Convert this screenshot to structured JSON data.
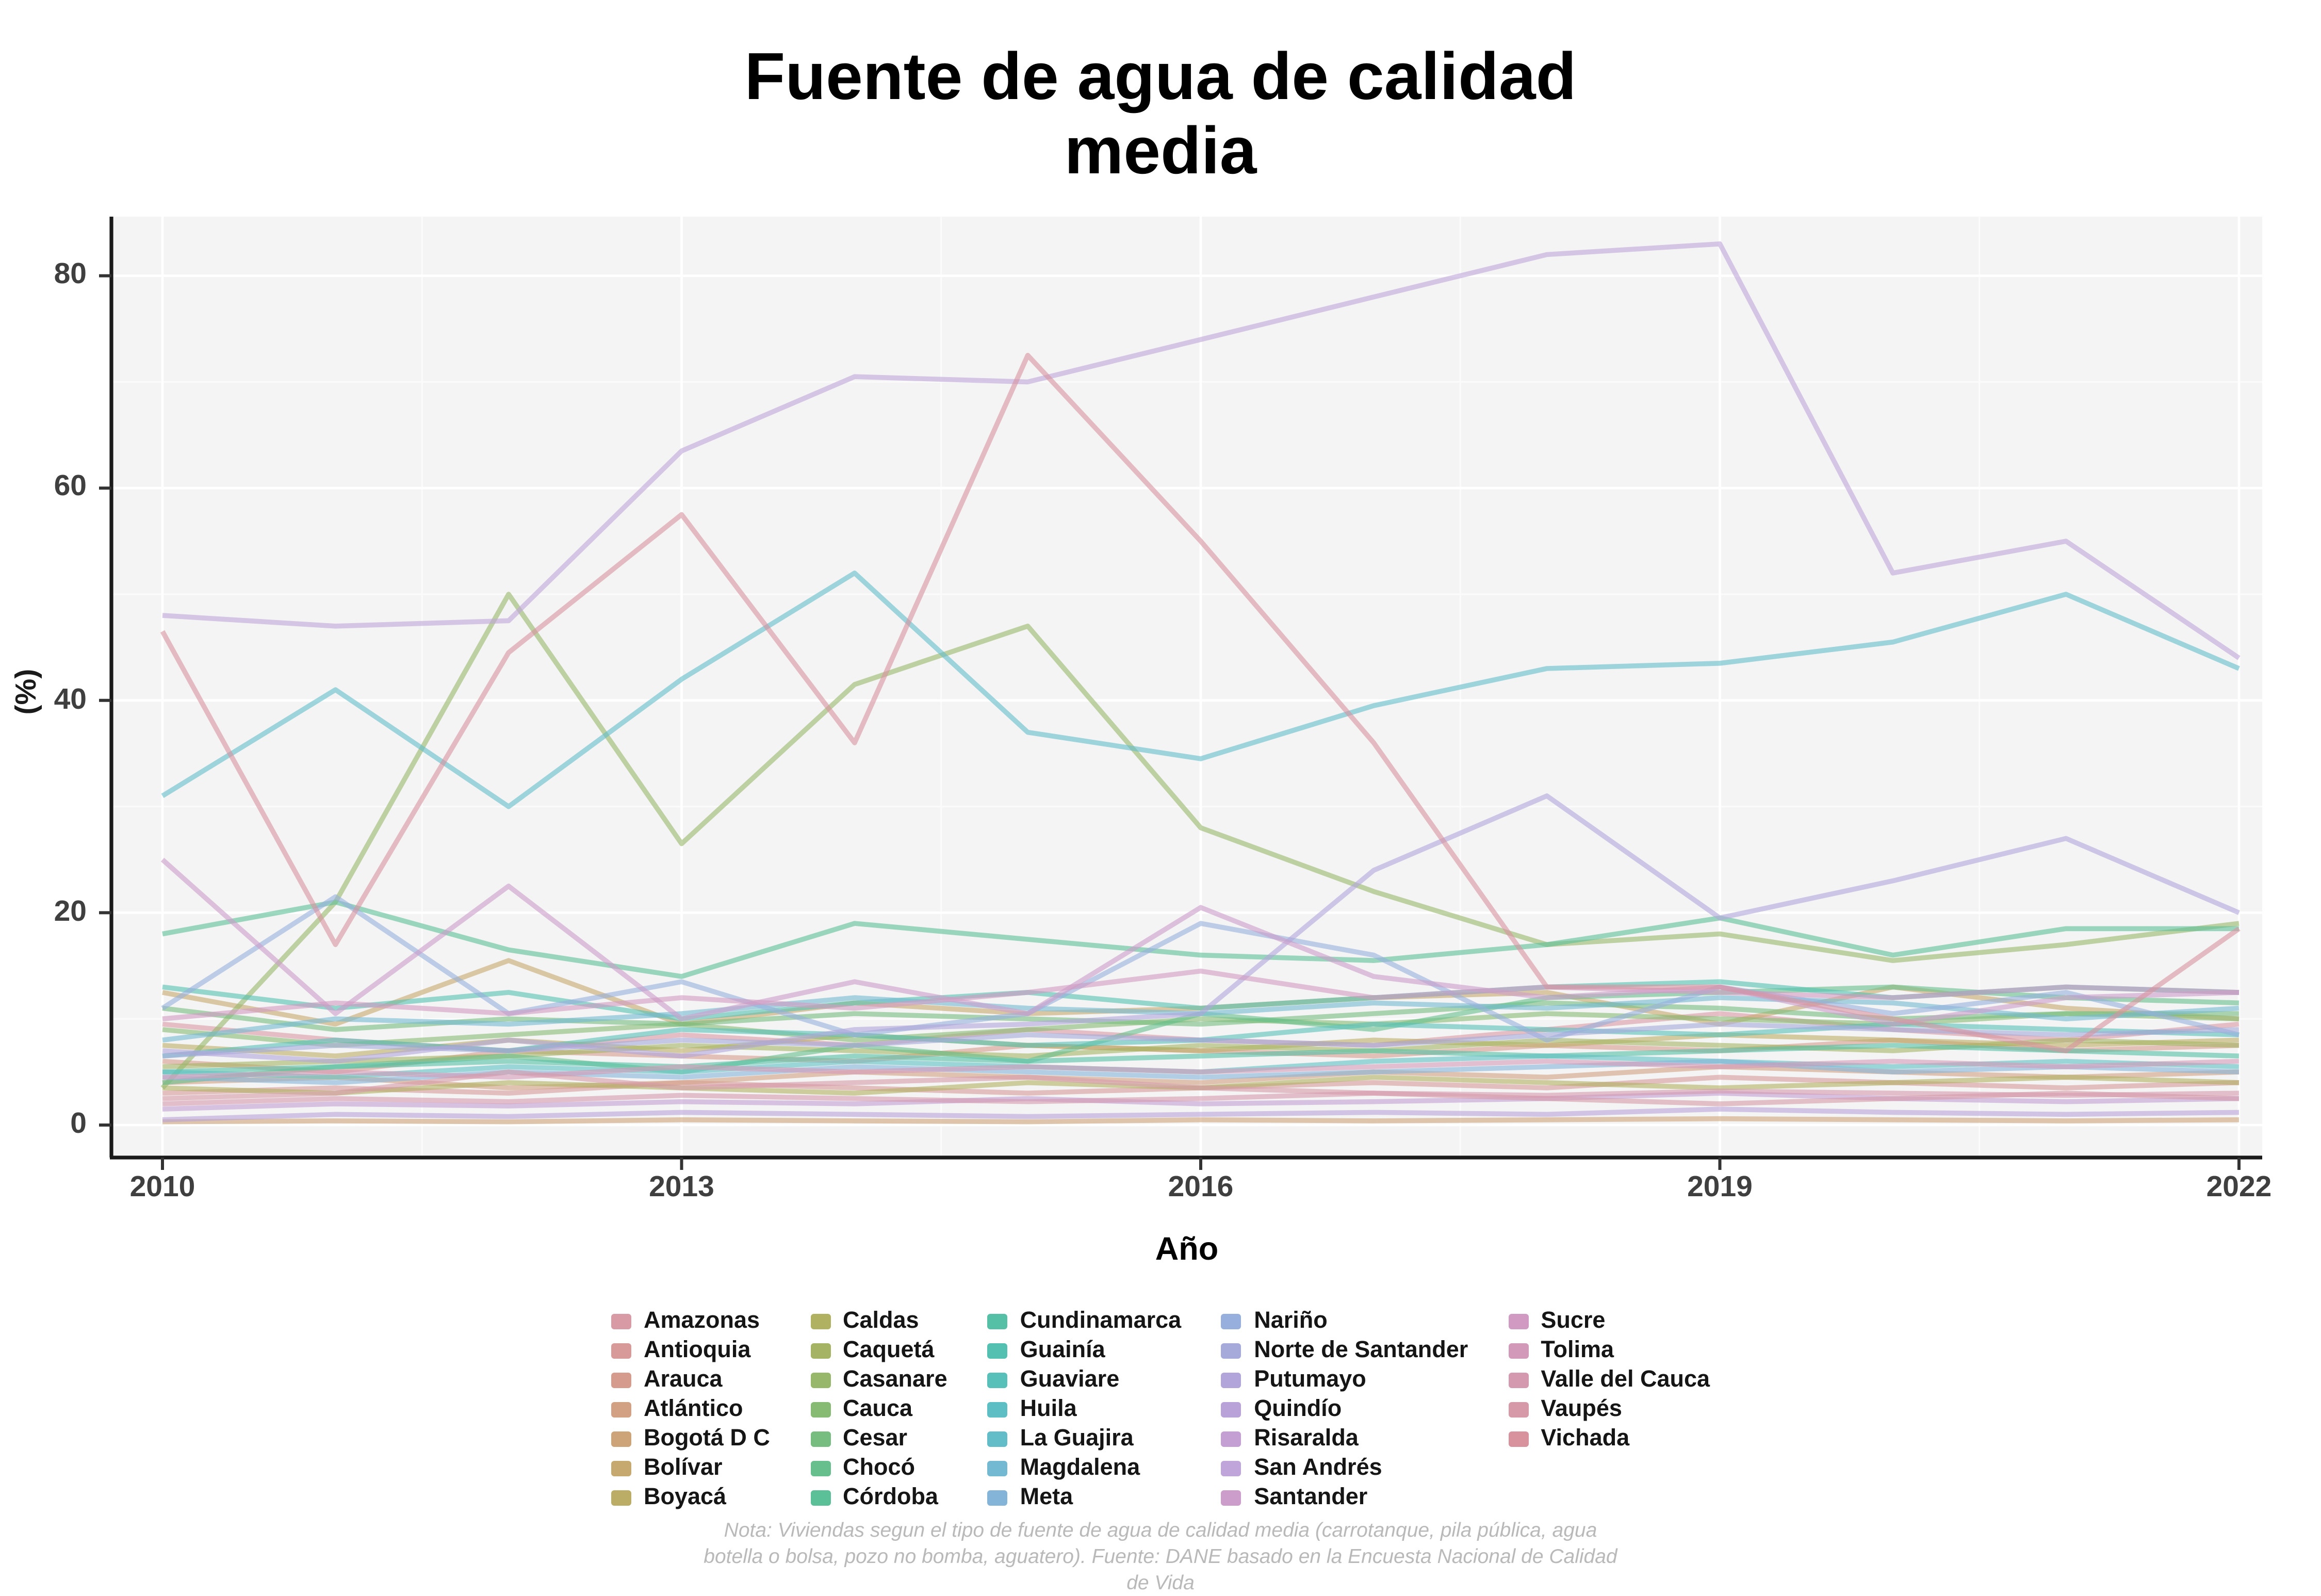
{
  "title": "Fuente de agua de calidad media",
  "footnote": "Nota: Viviendas segun el tipo de fuente de agua de calidad media (carrotanque, pila pública, agua botella o bolsa, pozo no bomba, aguatero). Fuente: DANE basado en la Encuesta Nacional de Calidad de Vida",
  "x_axis": {
    "label": "Año",
    "ticks": [
      2010,
      2013,
      2016,
      2019,
      2022
    ]
  },
  "y_axis": {
    "label": "(%)",
    "ticks": [
      0,
      20,
      40,
      60,
      80
    ]
  },
  "style": {
    "panel_bg": "#f4f4f4",
    "grid_major": "#ffffff",
    "grid_minor": "#fbfbfb",
    "axis_color": "#1a1a1a",
    "tick_color": "#333333",
    "line_opacity": 0.6,
    "line_width": 3.2
  },
  "legend": {
    "columns": [
      [
        "Amazonas",
        "Antioquia",
        "Arauca",
        "Atlántico",
        "Bogotá D C",
        "Bolívar",
        "Boyacá"
      ],
      [
        "Caldas",
        "Caquetá",
        "Casanare",
        "Cauca",
        "Cesar",
        "Chocó",
        "Córdoba"
      ],
      [
        "Cundinamarca",
        "Guainía",
        "Guaviare",
        "Huila",
        "La Guajira",
        "Magdalena",
        "Meta"
      ],
      [
        "Nariño",
        "Norte de Santander",
        "Putumayo",
        "Quindío",
        "Risaralda",
        "San Andrés",
        "Santander"
      ],
      [
        "Sucre",
        "Tolima",
        "Valle del Cauca",
        "Vaupés",
        "Vichada"
      ]
    ]
  },
  "chart_data": {
    "type": "line",
    "title": "Fuente de agua de calidad media",
    "xlabel": "Año",
    "ylabel": "(%)",
    "x": [
      2010,
      2011,
      2012,
      2013,
      2014,
      2015,
      2016,
      2017,
      2018,
      2019,
      2020,
      2021,
      2022
    ],
    "x_ticks": [
      2010,
      2013,
      2016,
      2019,
      2022
    ],
    "y_ticks": [
      0,
      20,
      40,
      60,
      80
    ],
    "ylim": [
      0,
      85
    ],
    "grid": true,
    "legend_position": "bottom",
    "series": [
      {
        "name": "Amazonas",
        "color": "#d89aa4",
        "values": [
          9.5,
          8,
          7,
          8.5,
          7.5,
          9,
          8,
          7.5,
          9,
          10.5,
          9,
          8,
          9.5
        ]
      },
      {
        "name": "Antioquia",
        "color": "#d79a99",
        "values": [
          3,
          3.5,
          3,
          4,
          3.5,
          3,
          3.5,
          4,
          3.5,
          4.5,
          4,
          3.5,
          4
        ]
      },
      {
        "name": "Arauca",
        "color": "#d59c8e",
        "values": [
          6,
          5,
          7,
          6.5,
          6,
          7.5,
          7,
          6.5,
          7.5,
          7,
          8,
          7,
          7.5
        ]
      },
      {
        "name": "Atlántico",
        "color": "#d2a083",
        "values": [
          4,
          4.5,
          3.5,
          4,
          5,
          4.5,
          4,
          5,
          4.5,
          5.5,
          5,
          4.5,
          5
        ]
      },
      {
        "name": "Bogotá D C",
        "color": "#cda478",
        "values": [
          0.3,
          0.4,
          0.3,
          0.5,
          0.4,
          0.3,
          0.5,
          0.4,
          0.5,
          0.6,
          0.5,
          0.4,
          0.5
        ]
      },
      {
        "name": "Bolívar",
        "color": "#c6a96e",
        "values": [
          12.5,
          9.5,
          15.5,
          9.5,
          11.5,
          10.5,
          11,
          12,
          12.5,
          9.5,
          13,
          11,
          10
        ]
      },
      {
        "name": "Boyacá",
        "color": "#bcad66",
        "values": [
          7.5,
          6.5,
          8,
          7,
          8.5,
          7.5,
          7,
          8,
          7.5,
          8.5,
          8,
          7.5,
          8
        ]
      },
      {
        "name": "Caldas",
        "color": "#b1b162",
        "values": [
          3.5,
          3,
          4,
          3.5,
          3,
          4,
          3.5,
          4.5,
          4,
          3.5,
          4,
          4.5,
          4
        ]
      },
      {
        "name": "Caquetá",
        "color": "#a5b464",
        "values": [
          5.5,
          6,
          6.5,
          7.5,
          7,
          6.5,
          7.5,
          7,
          8,
          7.5,
          7,
          8,
          7.5
        ]
      },
      {
        "name": "Casanare",
        "color": "#97b76a",
        "values": [
          3.5,
          21,
          50,
          26.5,
          41.5,
          47,
          28,
          22,
          17,
          18,
          15.5,
          17,
          19
        ]
      },
      {
        "name": "Cauca",
        "color": "#87ba73",
        "values": [
          9,
          7.5,
          8.5,
          9.5,
          8,
          9,
          10,
          9.5,
          10.5,
          10,
          9.5,
          10.5,
          10
        ]
      },
      {
        "name": "Cesar",
        "color": "#76bd7f",
        "values": [
          11,
          9,
          10,
          9.5,
          10.5,
          10,
          9.5,
          10.5,
          11.5,
          11,
          10,
          10.5,
          10.5
        ]
      },
      {
        "name": "Chocó",
        "color": "#66bf8c",
        "values": [
          4,
          5.5,
          6.5,
          5,
          7.5,
          6,
          10.5,
          9,
          12,
          12.5,
          13,
          12,
          11.5
        ]
      },
      {
        "name": "Córdoba",
        "color": "#5bc098",
        "values": [
          18,
          21,
          16.5,
          14,
          19,
          17.5,
          16,
          15.5,
          17,
          19.5,
          16,
          18.5,
          18.5
        ]
      },
      {
        "name": "Cundinamarca",
        "color": "#55c0a5",
        "values": [
          5,
          5.5,
          6,
          5.5,
          6.5,
          6,
          6.5,
          7,
          6.5,
          7,
          7.5,
          7,
          6.5
        ]
      },
      {
        "name": "Guainía",
        "color": "#54c0b1",
        "values": [
          13,
          11,
          12.5,
          10,
          11.5,
          12.5,
          11,
          12,
          13,
          13.5,
          12,
          13,
          12.5
        ]
      },
      {
        "name": "Guaviare",
        "color": "#58c0b9",
        "values": [
          6.5,
          8,
          7,
          9,
          8.5,
          7.5,
          8,
          9.5,
          9,
          8.5,
          9.5,
          9,
          8.5
        ]
      },
      {
        "name": "Huila",
        "color": "#5dbfc3",
        "values": [
          5,
          4.5,
          5.5,
          5,
          6,
          5.5,
          5,
          6,
          6.5,
          6,
          5.5,
          6,
          5.5
        ]
      },
      {
        "name": "La Guajira",
        "color": "#62bdc9",
        "values": [
          31,
          41,
          30,
          42,
          52,
          37,
          34.5,
          39.5,
          43,
          43.5,
          45.5,
          50,
          43
        ]
      },
      {
        "name": "Magdalena",
        "color": "#74b9d2",
        "values": [
          8,
          10,
          9.5,
          10.5,
          12,
          11,
          10.5,
          11.5,
          11,
          12,
          11.5,
          10,
          11
        ]
      },
      {
        "name": "Meta",
        "color": "#85b4d9",
        "values": [
          4.5,
          4,
          5,
          4.5,
          5.5,
          5,
          4.5,
          5,
          5.5,
          6,
          5,
          5.5,
          5
        ]
      },
      {
        "name": "Nariño",
        "color": "#96afdc",
        "values": [
          11,
          21.5,
          10.5,
          13.5,
          8.5,
          10.5,
          19,
          16,
          8,
          13,
          10.5,
          12.5,
          8.5
        ]
      },
      {
        "name": "Norte de Santander",
        "color": "#a5aadb",
        "values": [
          6.5,
          7.5,
          7,
          8,
          7.5,
          8.5,
          8,
          7.5,
          8.5,
          9.5,
          9,
          8.5,
          9
        ]
      },
      {
        "name": "Putumayo",
        "color": "#b1a5da",
        "values": [
          7,
          6,
          8,
          6.5,
          9,
          9.5,
          10.5,
          24,
          31,
          19.5,
          23,
          27,
          20
        ]
      },
      {
        "name": "Quindío",
        "color": "#b9a2d7",
        "values": [
          0.5,
          1,
          0.8,
          1.2,
          1,
          0.8,
          1,
          1.2,
          1,
          1.5,
          1.2,
          1,
          1.2
        ]
      },
      {
        "name": "Risaralda",
        "color": "#c39fd4",
        "values": [
          1.5,
          2,
          1.8,
          2.2,
          2,
          2.5,
          2,
          2.2,
          2.5,
          3,
          2.5,
          2.2,
          2.5
        ]
      },
      {
        "name": "San Andrés",
        "color": "#bfa5d9",
        "values": [
          48,
          47,
          47.5,
          63.5,
          70.5,
          70,
          74,
          78,
          82,
          83,
          52,
          55,
          44
        ]
      },
      {
        "name": "Santander",
        "color": "#cc9cca",
        "values": [
          25,
          10.5,
          22.5,
          10,
          13.5,
          10.5,
          20.5,
          14,
          12,
          13,
          9.5,
          12,
          12.5
        ]
      },
      {
        "name": "Sucre",
        "color": "#d09ac2",
        "values": [
          10,
          11.5,
          10.5,
          12,
          11,
          12.5,
          14.5,
          12,
          13,
          12.5,
          12,
          13,
          12.5
        ]
      },
      {
        "name": "Tolima",
        "color": "#d399b8",
        "values": [
          4.5,
          5,
          4.5,
          5.5,
          5,
          5.5,
          5,
          5.5,
          6,
          5.5,
          6,
          5.5,
          6
        ]
      },
      {
        "name": "Valle del Cauca",
        "color": "#d599af",
        "values": [
          2,
          2.5,
          2.2,
          2.8,
          2.5,
          2.2,
          2.5,
          3,
          2.8,
          3.2,
          3,
          2.8,
          3
        ]
      },
      {
        "name": "Vaupés",
        "color": "#d699a8",
        "values": [
          2.5,
          3,
          5,
          3.5,
          4,
          4.5,
          3.5,
          3,
          2.5,
          2,
          2.5,
          3,
          2.5
        ]
      },
      {
        "name": "Vichada",
        "color": "#d7929e",
        "values": [
          46.5,
          17,
          44.5,
          57.5,
          36,
          72.5,
          55,
          36,
          13,
          13,
          10,
          7,
          18.5
        ]
      }
    ]
  }
}
